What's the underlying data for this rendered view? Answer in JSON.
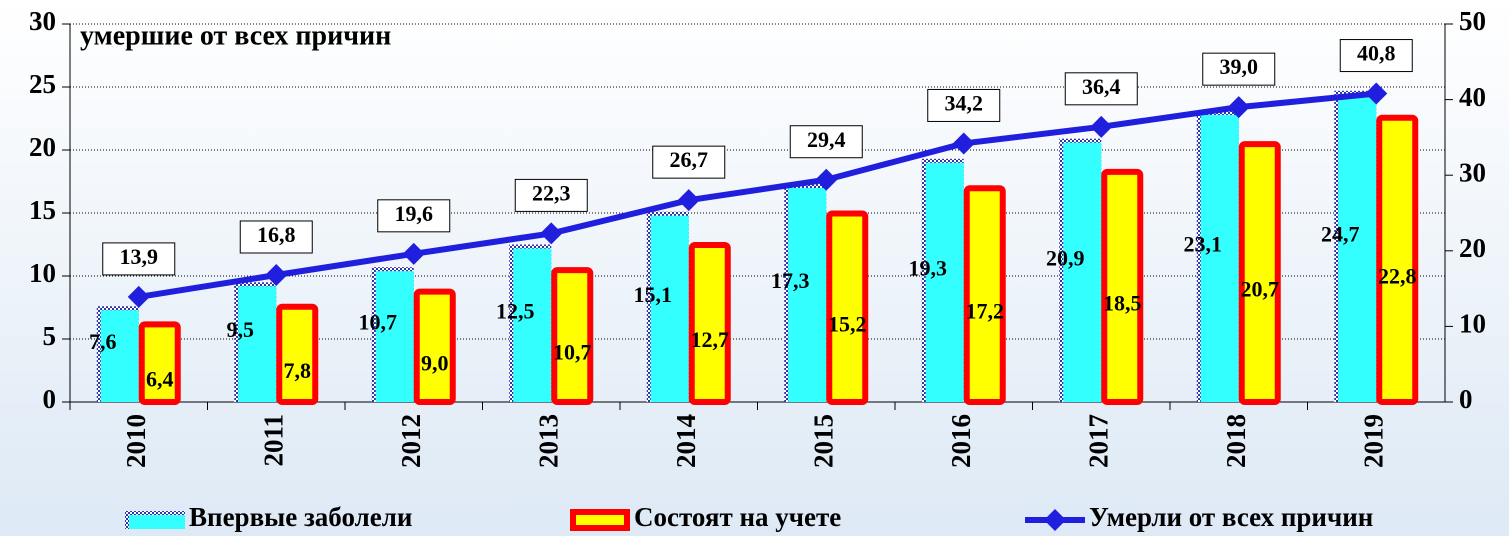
{
  "chart_data": {
    "type": "bar_line",
    "title": "умершие от всех причин",
    "categories": [
      "2010",
      "2011",
      "2012",
      "2013",
      "2014",
      "2015",
      "2016",
      "2017",
      "2018",
      "2019"
    ],
    "series": [
      {
        "name": "Впервые заболели",
        "color": "#33ffff",
        "type": "bar",
        "values": [
          7.6,
          9.5,
          10.7,
          12.5,
          15.1,
          17.3,
          19.3,
          20.9,
          23.1,
          24.7
        ],
        "value_labels": [
          "7,6",
          "9,5",
          "10,7",
          "12,5",
          "15,1",
          "17,3",
          "19,3",
          "20,9",
          "23,1",
          "24,7"
        ]
      },
      {
        "name": "Состоят на учете",
        "color": "#ffff00",
        "type": "bar",
        "values": [
          6.4,
          7.8,
          9.0,
          10.7,
          12.7,
          15.2,
          17.2,
          18.5,
          20.7,
          22.8
        ],
        "value_labels": [
          "6,4",
          "7,8",
          "9,0",
          "10,7",
          "12,7",
          "15,2",
          "17,2",
          "18,5",
          "20,7",
          "22,8"
        ]
      },
      {
        "name": "Умерли от всех причин",
        "color": "#1f1fdd",
        "type": "line",
        "axis": "y2",
        "values": [
          13.9,
          16.8,
          19.6,
          22.3,
          26.7,
          29.4,
          34.2,
          36.4,
          39.0,
          40.8
        ],
        "value_labels": [
          "13,9",
          "16,8",
          "19,6",
          "22,3",
          "26,7",
          "29,4",
          "34,2",
          "36,4",
          "39,0",
          "40,8"
        ]
      }
    ],
    "ylim": [
      0,
      30
    ],
    "yticks": [
      0,
      5,
      10,
      15,
      20,
      25,
      30
    ],
    "y2lim": [
      0,
      50
    ],
    "y2ticks": [
      0,
      10,
      20,
      30,
      40,
      50
    ],
    "grid": true,
    "legend": "bottom"
  }
}
